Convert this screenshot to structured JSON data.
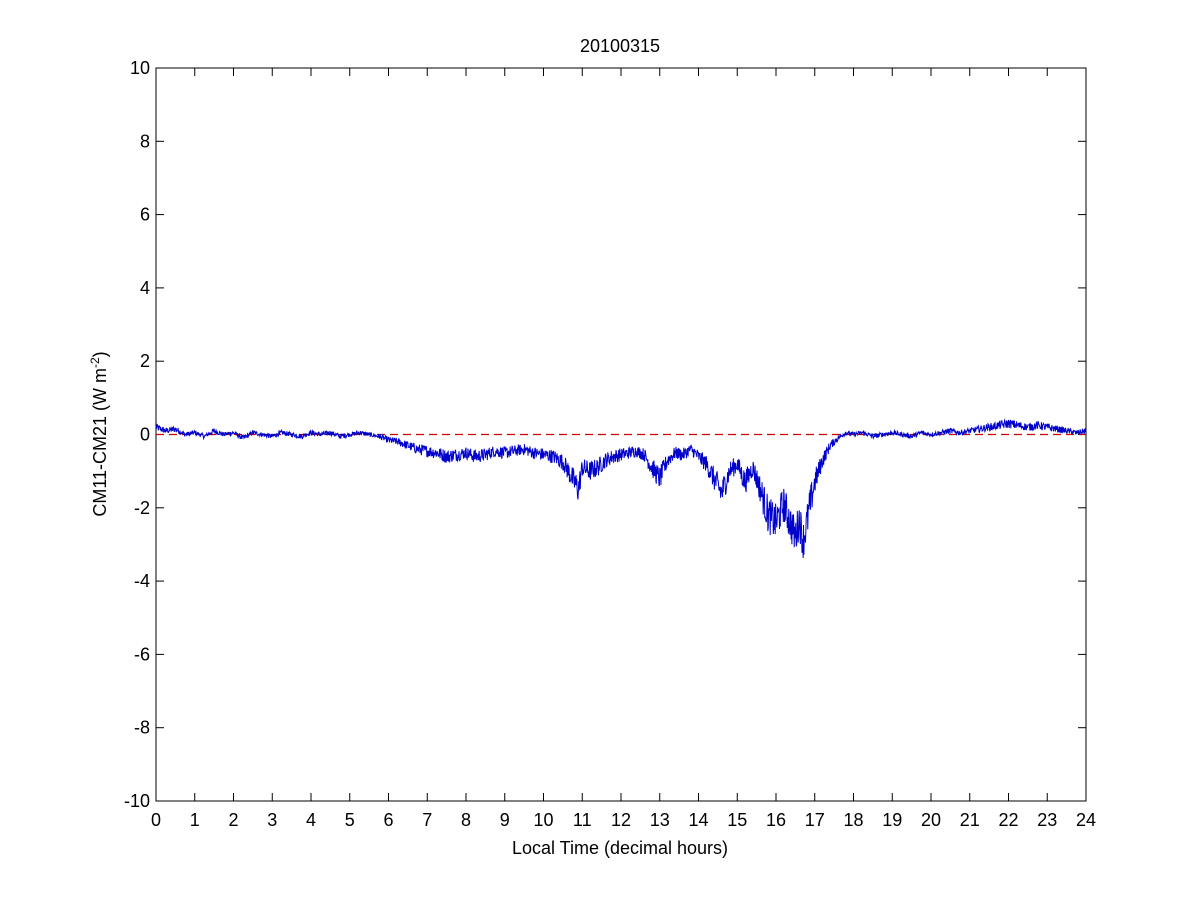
{
  "chart_data": {
    "type": "line",
    "title": "20100315",
    "xlabel": "Local Time (decimal hours)",
    "ylabel": {
      "main": "CM11-CM21 (W m",
      "superscript": "-2",
      "close": ")"
    },
    "xlim": [
      0,
      24
    ],
    "ylim": [
      -10,
      10
    ],
    "xticks": [
      0,
      1,
      2,
      3,
      4,
      5,
      6,
      7,
      8,
      9,
      10,
      11,
      12,
      13,
      14,
      15,
      16,
      17,
      18,
      19,
      20,
      21,
      22,
      23,
      24
    ],
    "yticks": [
      -10,
      -8,
      -6,
      -4,
      -2,
      0,
      2,
      4,
      6,
      8,
      10
    ],
    "grid": false,
    "reference_line": {
      "y": 0,
      "style": "dashed",
      "color": "#cc0000"
    },
    "series": [
      {
        "color": "#0000cc",
        "x": [
          0,
          0.25,
          0.5,
          0.75,
          1,
          1.25,
          1.5,
          1.75,
          2,
          2.25,
          2.5,
          2.75,
          3,
          3.25,
          3.5,
          3.75,
          4,
          4.25,
          4.5,
          4.75,
          5,
          5.25,
          5.5,
          5.75,
          6,
          6.25,
          6.5,
          6.75,
          7,
          7.25,
          7.5,
          7.75,
          8,
          8.25,
          8.5,
          8.75,
          9,
          9.25,
          9.5,
          9.75,
          10,
          10.25,
          10.5,
          10.7,
          10.9,
          11.0,
          11.2,
          11.4,
          11.6,
          11.8,
          12,
          12.2,
          12.4,
          12.6,
          12.8,
          13.0,
          13.2,
          13.4,
          13.6,
          13.8,
          14.0,
          14.2,
          14.4,
          14.6,
          14.8,
          15.0,
          15.2,
          15.4,
          15.6,
          15.8,
          16.0,
          16.2,
          16.4,
          16.5,
          16.6,
          16.7,
          16.8,
          16.9,
          17.0,
          17.2,
          17.4,
          17.6,
          17.8,
          18,
          18.25,
          18.5,
          18.75,
          19,
          19.25,
          19.5,
          19.75,
          20,
          20.25,
          20.5,
          20.75,
          21,
          21.25,
          21.5,
          21.75,
          22,
          22.25,
          22.5,
          22.75,
          23,
          23.25,
          23.5,
          23.75,
          24
        ],
        "y": [
          0.2,
          0.1,
          0.15,
          0.0,
          0.05,
          -0.05,
          0.1,
          0.0,
          0.05,
          -0.1,
          0.05,
          0.0,
          -0.05,
          0.05,
          0.0,
          -0.05,
          0.05,
          0.0,
          0.05,
          -0.05,
          0.0,
          0.05,
          0.0,
          -0.05,
          -0.15,
          -0.2,
          -0.3,
          -0.4,
          -0.45,
          -0.5,
          -0.6,
          -0.55,
          -0.5,
          -0.6,
          -0.55,
          -0.45,
          -0.5,
          -0.45,
          -0.4,
          -0.5,
          -0.55,
          -0.6,
          -0.75,
          -1.1,
          -1.5,
          -0.9,
          -1.0,
          -0.9,
          -0.7,
          -0.6,
          -0.55,
          -0.5,
          -0.45,
          -0.55,
          -0.9,
          -1.2,
          -0.7,
          -0.5,
          -0.55,
          -0.4,
          -0.6,
          -0.8,
          -1.2,
          -1.6,
          -1.0,
          -0.8,
          -1.3,
          -0.9,
          -1.5,
          -2.2,
          -2.4,
          -1.9,
          -2.5,
          -2.8,
          -2.3,
          -2.9,
          -2.4,
          -1.8,
          -1.3,
          -0.7,
          -0.3,
          -0.1,
          0.05,
          0.0,
          0.05,
          -0.05,
          0.0,
          0.05,
          0.0,
          -0.05,
          0.05,
          0.0,
          0.05,
          0.1,
          0.05,
          0.1,
          0.15,
          0.2,
          0.25,
          0.3,
          0.25,
          0.2,
          0.25,
          0.2,
          0.15,
          0.1,
          0.05,
          0.1
        ]
      }
    ]
  }
}
